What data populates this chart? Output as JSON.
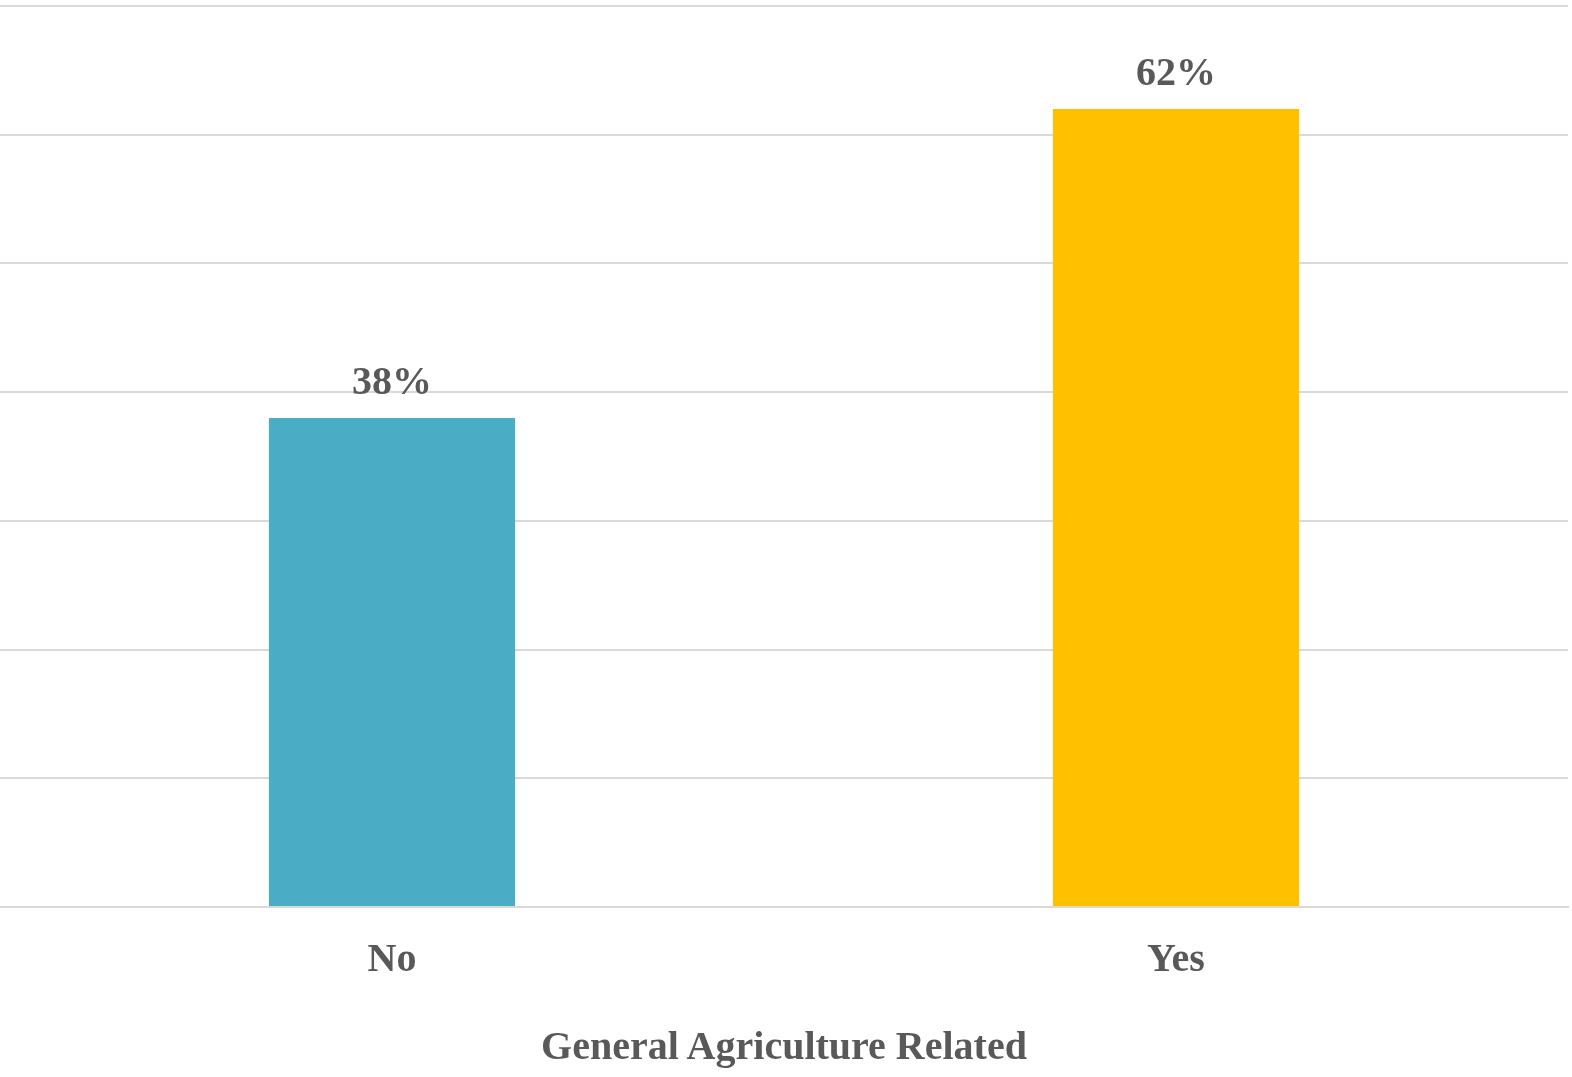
{
  "chart_data": {
    "type": "bar",
    "xlabel": "General Agriculture Related",
    "categories": [
      "No",
      "Yes"
    ],
    "values": [
      38,
      62
    ],
    "colors": [
      "#4bacc6",
      "#ffc000"
    ],
    "value_labels": [
      "38%",
      "62%"
    ],
    "ylim": [
      0,
      70
    ],
    "yticks": [
      {
        "value": 0,
        "label": null
      },
      {
        "value": 10,
        "label": null
      },
      {
        "value": 20,
        "label": null
      },
      {
        "value": 30,
        "label": null
      },
      {
        "value": 40,
        "label": null
      },
      {
        "value": 50,
        "label": null
      },
      {
        "value": 60,
        "label": null
      },
      {
        "value": 70,
        "label": null
      }
    ],
    "grid": "y",
    "tick_labels": "x"
  }
}
